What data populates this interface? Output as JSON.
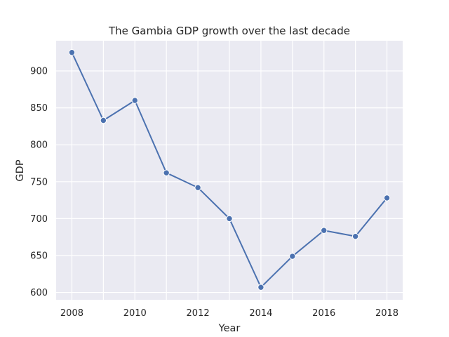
{
  "chart_data": {
    "type": "line",
    "title": "The Gambia GDP growth over the last decade",
    "xlabel": "Year",
    "ylabel": "GDP",
    "x": [
      2008,
      2009,
      2010,
      2011,
      2012,
      2013,
      2014,
      2015,
      2016,
      2017,
      2018
    ],
    "series": [
      {
        "values": [
          925,
          833,
          860,
          762,
          742,
          700,
          607,
          649,
          684,
          676,
          728
        ]
      }
    ],
    "xticks": [
      2008,
      2010,
      2012,
      2014,
      2016,
      2018
    ],
    "yticks": [
      600,
      650,
      700,
      750,
      800,
      850,
      900
    ],
    "xlim": [
      2007.5,
      2018.5
    ],
    "ylim": [
      590.1,
      940.9
    ],
    "grid": true,
    "markers": true,
    "colors": {
      "plot_background": "#eaeaf2",
      "grid": "#ffffff",
      "line": "#4c72b0",
      "text": "#262626"
    }
  }
}
